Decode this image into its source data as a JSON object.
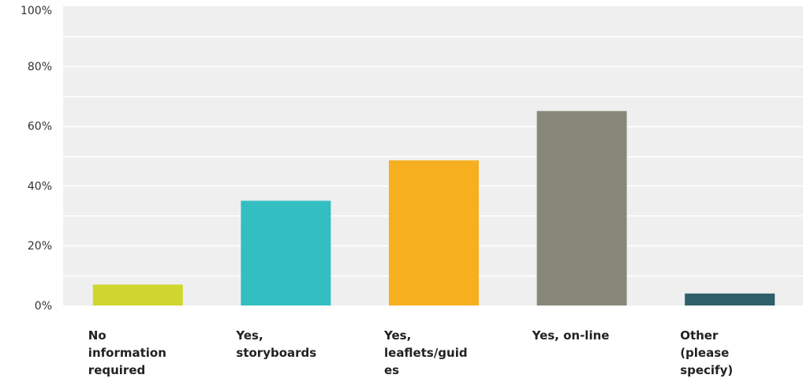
{
  "chart_data": {
    "type": "bar",
    "title": "",
    "xlabel": "",
    "ylabel": "",
    "ylim": [
      0,
      100
    ],
    "y_ticks": [
      "0%",
      "20%",
      "40%",
      "60%",
      "80%",
      "100%"
    ],
    "y_tick_values": [
      0,
      20,
      40,
      60,
      80,
      100
    ],
    "minor_gridlines": true,
    "grid": true,
    "legend": "none",
    "categories": [
      [
        "No",
        "information",
        "required"
      ],
      [
        "Yes,",
        "storyboards"
      ],
      [
        "Yes,",
        "leaflets/guid",
        "es"
      ],
      [
        "Yes, on-line"
      ],
      [
        "Other",
        "(please",
        "specify)"
      ]
    ],
    "values": [
      7,
      35,
      48.5,
      65,
      4
    ],
    "colors": [
      "#cfd62d",
      "#33bfc1",
      "#f5af1f",
      "#888878",
      "#2e5f6b"
    ],
    "plot_background": "#efefef",
    "gridline_color": "#ffffff"
  }
}
